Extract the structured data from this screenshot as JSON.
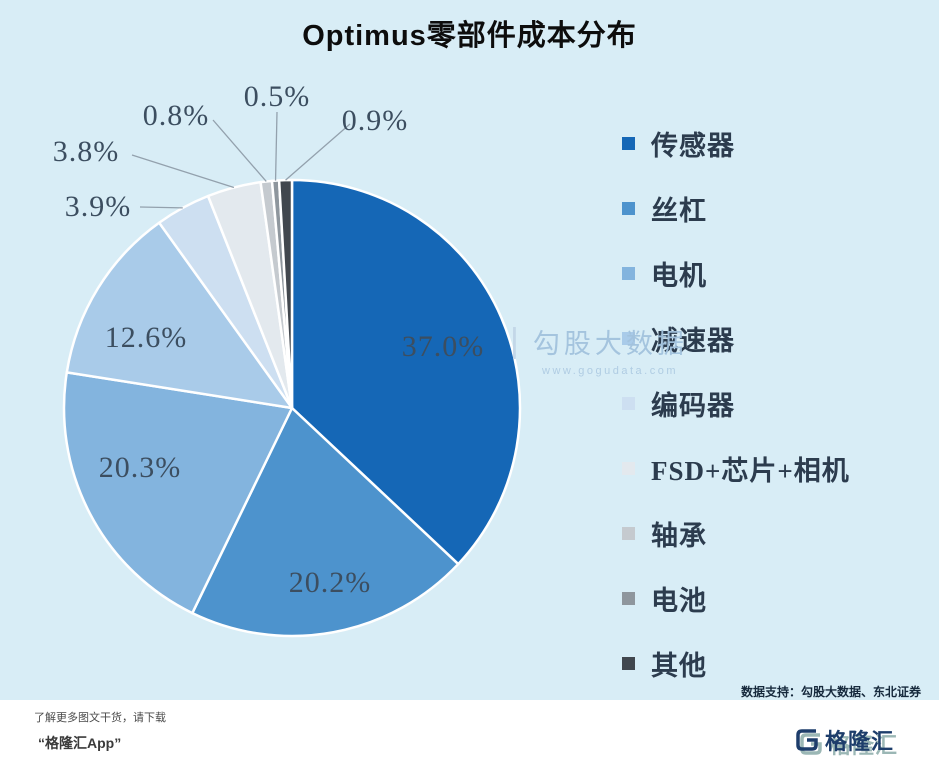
{
  "title": "Optimus零部件成本分布",
  "chart_data": {
    "type": "pie",
    "title": "Optimus零部件成本分布",
    "categories": [
      "传感器",
      "丝杠",
      "电机",
      "减速器",
      "编码器",
      "FSD+芯片+相机",
      "轴承",
      "电池",
      "其他"
    ],
    "values": [
      37.0,
      20.2,
      20.3,
      12.6,
      3.9,
      3.8,
      0.8,
      0.5,
      0.9
    ],
    "labels": [
      "37.0%",
      "20.2%",
      "20.3%",
      "12.6%",
      "3.9%",
      "3.8%",
      "0.8%",
      "0.5%",
      "0.9%"
    ],
    "colors": [
      "#1567b6",
      "#4d93cd",
      "#83b4de",
      "#a9cbe9",
      "#cddff1",
      "#e3e9ee",
      "#c5cacf",
      "#8e969d",
      "#41474e"
    ],
    "legend_position": "right",
    "start_angle_deg": 0,
    "direction": "clockwise"
  },
  "watermark": {
    "bar": "|",
    "name": "勾股大数据",
    "url": "www.gogudata.com"
  },
  "source_note": "数据支持：勾股大数据、东北证券",
  "footer": {
    "line1": "了解更多图文干货，请下载",
    "line2": "“格隆汇App”"
  },
  "logo": {
    "text": "格隆汇"
  }
}
